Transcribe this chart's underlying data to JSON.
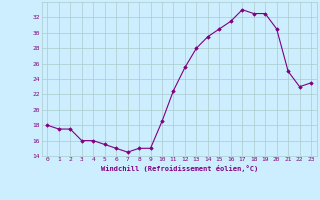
{
  "x": [
    0,
    1,
    2,
    3,
    4,
    5,
    6,
    7,
    8,
    9,
    10,
    11,
    12,
    13,
    14,
    15,
    16,
    17,
    18,
    19,
    20,
    21,
    22,
    23
  ],
  "y": [
    18,
    17.5,
    17.5,
    16,
    16,
    15.5,
    15,
    14.5,
    15,
    15,
    18.5,
    22.5,
    25.5,
    28,
    29.5,
    30.5,
    31.5,
    33,
    32.5,
    32.5,
    30.5,
    25,
    23,
    23.5
  ],
  "line_color": "#800080",
  "marker_color": "#800080",
  "bg_color": "#cceeff",
  "grid_color": "#aacccc",
  "xlabel": "Windchill (Refroidissement éolien,°C)",
  "xlabel_color": "#800080",
  "tick_color": "#800080",
  "ylim": [
    14,
    34
  ],
  "xlim": [
    -0.5,
    23.5
  ],
  "yticks": [
    14,
    16,
    18,
    20,
    22,
    24,
    26,
    28,
    30,
    32
  ],
  "xticks": [
    0,
    1,
    2,
    3,
    4,
    5,
    6,
    7,
    8,
    9,
    10,
    11,
    12,
    13,
    14,
    15,
    16,
    17,
    18,
    19,
    20,
    21,
    22,
    23
  ],
  "fig_bg": "#cceeff"
}
